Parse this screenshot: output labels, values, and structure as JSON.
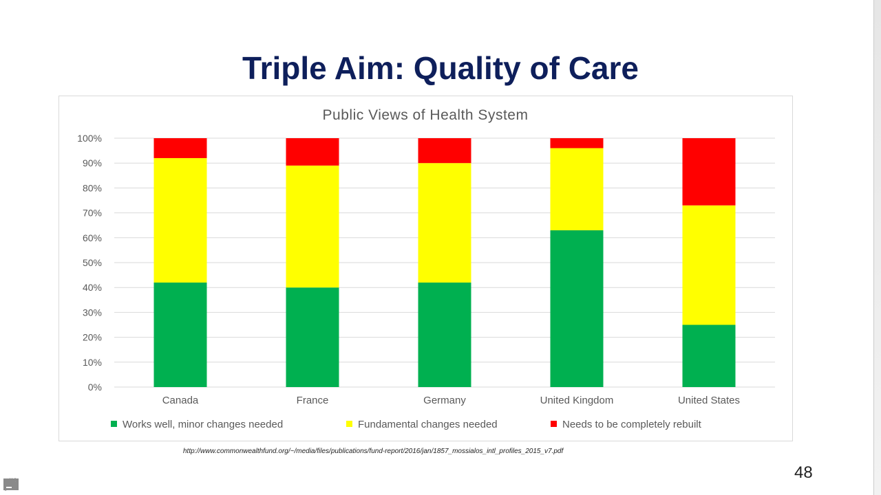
{
  "slide": {
    "title": "Triple Aim: Quality of Care",
    "source": "http://www.commonwealthfund.org/~/media/files/publications/fund-report/2016/jan/1857_mossialos_intl_profiles_2015_v7.pdf",
    "page_number": "48",
    "nav_icons": [
      "arrow-left-icon",
      "pencil-icon",
      "menu-icon",
      "arrow-right-icon"
    ]
  },
  "chart_data": {
    "type": "bar",
    "stacked": true,
    "title": "Public Views of Health System",
    "categories": [
      "Canada",
      "France",
      "Germany",
      "United Kingdom",
      "United States"
    ],
    "series": [
      {
        "name": "Works well, minor changes needed",
        "color": "#00b050",
        "values": [
          42,
          40,
          42,
          63,
          25
        ]
      },
      {
        "name": "Fundamental changes needed",
        "color": "#ffff00",
        "values": [
          50,
          49,
          48,
          33,
          48
        ]
      },
      {
        "name": "Needs to be completely rebuilt",
        "color": "#ff0000",
        "values": [
          8,
          11,
          10,
          4,
          27
        ]
      }
    ],
    "ylim": [
      0,
      100
    ],
    "yticks": [
      "0%",
      "10%",
      "20%",
      "30%",
      "40%",
      "50%",
      "60%",
      "70%",
      "80%",
      "90%",
      "100%"
    ],
    "grid": true,
    "legend": "bottom"
  }
}
